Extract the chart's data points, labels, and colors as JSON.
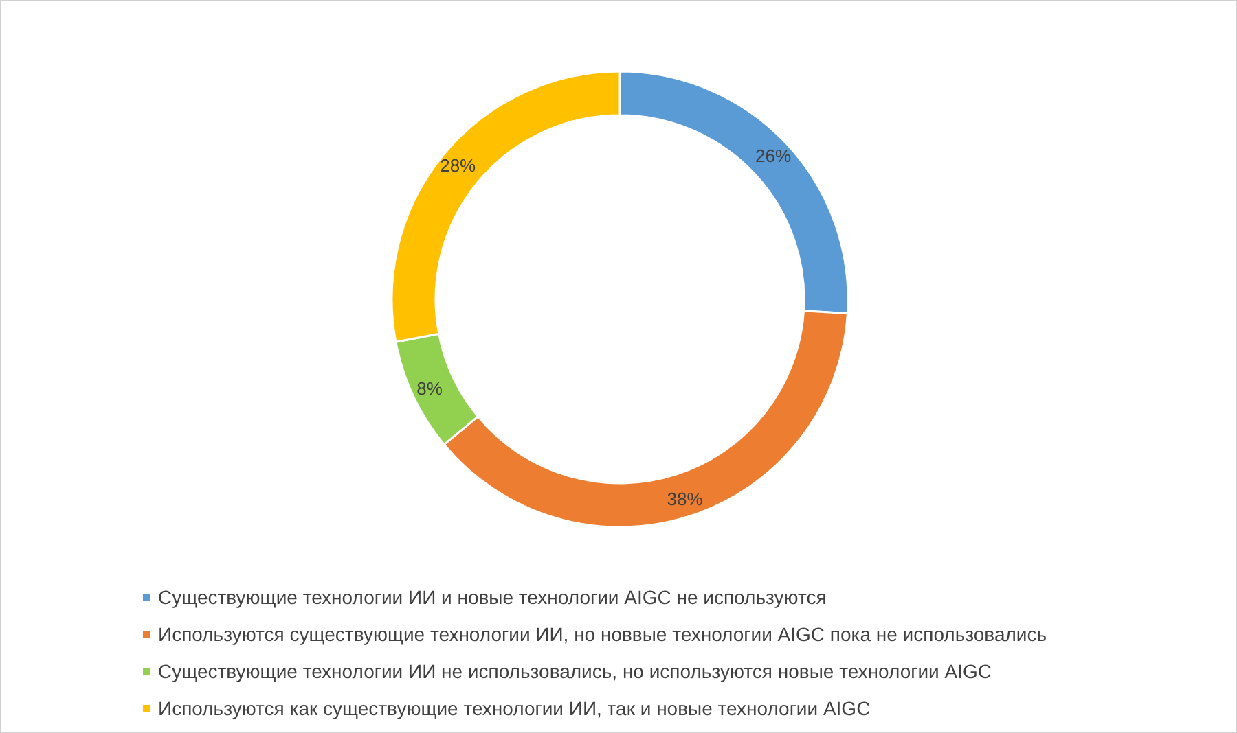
{
  "chart_data": {
    "type": "donut",
    "categories": [
      "Существующие технологии ИИ и новые технологии AIGC не используются",
      "Используются существующие технологии ИИ, но новвые технологии AIGC пока не использовались",
      "Существующие технологии ИИ не использовались, но используются новые технологии AIGC",
      "Используются как существующие технологии ИИ, так и новые технологии AIGC"
    ],
    "values": [
      26,
      38,
      8,
      28
    ],
    "colors": [
      "#5b9bd5",
      "#ed7d31",
      "#92d050",
      "#ffc000"
    ],
    "value_labels": [
      "26%",
      "38%",
      "8%",
      "28%"
    ],
    "legend": "bottom"
  }
}
